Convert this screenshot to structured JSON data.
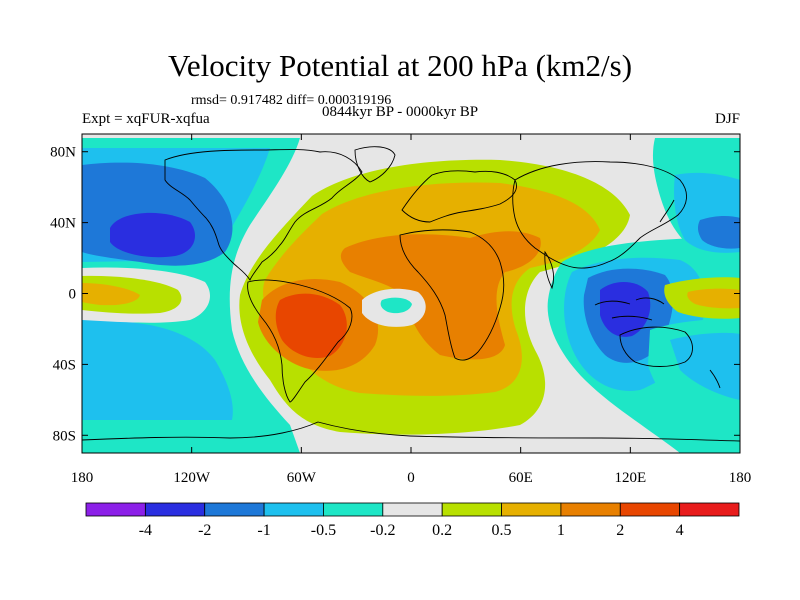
{
  "title": "Velocity Potential at 200 hPa (km2/s)",
  "stats_line": "rmsd= 0.917482 diff= 0.000319196",
  "left_subtitle": "Expt = xqFUR-xqfua",
  "center_subtitle": "0844kyr BP - 0000kyr BP",
  "right_subtitle": "DJF",
  "chart_data": {
    "type": "heatmap",
    "projection": "cylindrical-equidistant",
    "variable": "Velocity Potential at 200 hPa",
    "units": "km2/s",
    "season": "DJF",
    "xlim": [
      -180,
      180
    ],
    "ylim": [
      -90,
      90
    ],
    "x_ticks": [
      {
        "value": -180,
        "label": "180"
      },
      {
        "value": -120,
        "label": "120W"
      },
      {
        "value": -60,
        "label": "60W"
      },
      {
        "value": 0,
        "label": "0"
      },
      {
        "value": 60,
        "label": "60E"
      },
      {
        "value": 120,
        "label": "120E"
      },
      {
        "value": 180,
        "label": "180"
      }
    ],
    "y_ticks": [
      {
        "value": 80,
        "label": "80N"
      },
      {
        "value": 40,
        "label": "40N"
      },
      {
        "value": 0,
        "label": "0"
      },
      {
        "value": -40,
        "label": "40S"
      },
      {
        "value": -80,
        "label": "80S"
      }
    ],
    "colorbar": {
      "levels": [
        -4,
        -2,
        -1,
        -0.5,
        -0.2,
        0.2,
        0.5,
        1,
        2,
        4
      ],
      "labels": [
        "-4",
        "-2",
        "-1",
        "-0.5",
        "-0.2",
        "0.2",
        "0.5",
        "1",
        "2",
        "4"
      ],
      "colors": [
        "#8c20e8",
        "#2a2ee0",
        "#1e78d8",
        "#1ec0ee",
        "#1ee6c6",
        "#e6e6e6",
        "#b8e000",
        "#e6b000",
        "#e88000",
        "#e84600",
        "#e81c1c"
      ]
    },
    "anomaly_centers": [
      {
        "lon": -145,
        "lat": 34,
        "value": -2,
        "sign": "negative"
      },
      {
        "lon": -160,
        "lat": -2,
        "value": 1,
        "sign": "positive"
      },
      {
        "lon": 120,
        "lat": -8,
        "value": -2,
        "sign": "negative"
      },
      {
        "lon": -55,
        "lat": -12,
        "value": 4,
        "sign": "positive"
      },
      {
        "lon": 30,
        "lat": 20,
        "value": 2,
        "sign": "positive"
      },
      {
        "lon": 165,
        "lat": 0,
        "value": 1,
        "sign": "positive"
      },
      {
        "lon": -5,
        "lat": -10,
        "value": -0.2,
        "sign": "negative"
      }
    ]
  }
}
